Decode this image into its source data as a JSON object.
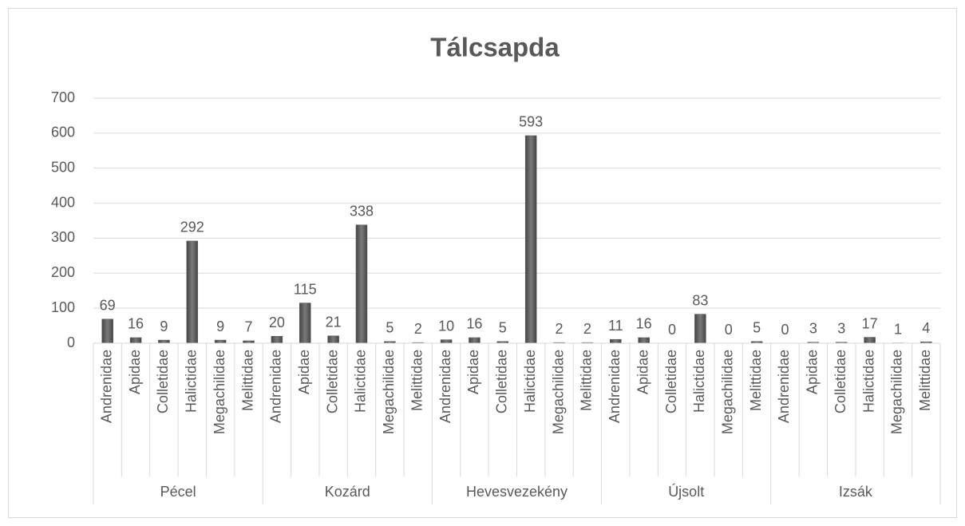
{
  "chart_data": {
    "type": "bar",
    "title": "Tálcsapda",
    "color": "#5f5f5f",
    "ylim": [
      0,
      700
    ],
    "yticks": [
      0,
      100,
      200,
      300,
      400,
      500,
      600,
      700
    ],
    "grid": true,
    "groups": [
      {
        "name": "Pécel",
        "categories": [
          "Andrenidae",
          "Apidae",
          "Colletidae",
          "Halictidae",
          "Megachilidae",
          "Melittidae"
        ],
        "values": [
          69,
          16,
          9,
          292,
          9,
          7
        ]
      },
      {
        "name": "Kozárd",
        "categories": [
          "Andrenidae",
          "Apidae",
          "Colletidae",
          "Halictidae",
          "Megachilidae",
          "Melittidae"
        ],
        "values": [
          20,
          115,
          21,
          338,
          5,
          2
        ]
      },
      {
        "name": "Hevesvezekény",
        "categories": [
          "Andrenidae",
          "Apidae",
          "Colletidae",
          "Halictidae",
          "Megachilidae",
          "Melittidae"
        ],
        "values": [
          10,
          16,
          5,
          593,
          2,
          2
        ]
      },
      {
        "name": "Újsolt",
        "categories": [
          "Andrenidae",
          "Apidae",
          "Colletidae",
          "Halictidae",
          "Megachilidae",
          "Melittidae"
        ],
        "values": [
          11,
          16,
          0,
          83,
          0,
          5
        ]
      },
      {
        "name": "Izsák",
        "categories": [
          "Andrenidae",
          "Apidae",
          "Colletidae",
          "Halictidae",
          "Megachilidae",
          "Melittidae"
        ],
        "values": [
          0,
          3,
          3,
          17,
          1,
          4
        ]
      }
    ]
  }
}
